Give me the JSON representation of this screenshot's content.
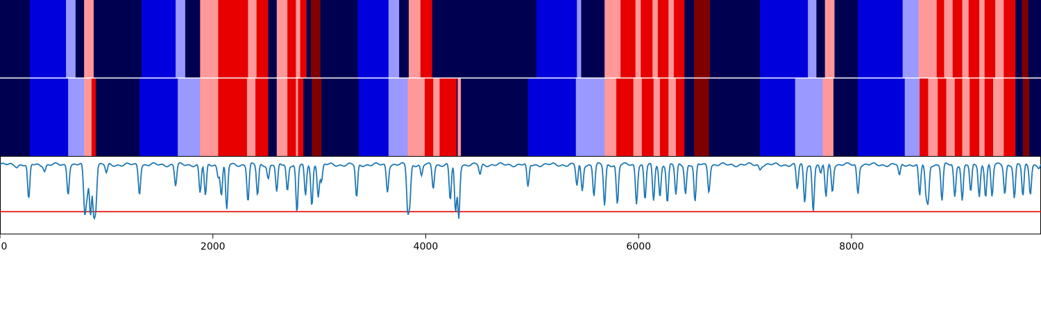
{
  "chart_data": [
    {
      "type": "heatmap",
      "palette": [
        "#000050",
        "#0000dc",
        "#9999ff",
        "#ff9999",
        "#e60000",
        "#800000"
      ],
      "xlim": [
        0,
        9780
      ],
      "segments": [
        [
          0,
          280,
          0
        ],
        [
          280,
          620,
          1
        ],
        [
          620,
          710,
          2
        ],
        [
          710,
          790,
          0
        ],
        [
          790,
          880,
          3
        ],
        [
          880,
          1330,
          0
        ],
        [
          1330,
          1650,
          1
        ],
        [
          1650,
          1740,
          2
        ],
        [
          1740,
          1880,
          0
        ],
        [
          1880,
          2050,
          3
        ],
        [
          2050,
          2330,
          4
        ],
        [
          2330,
          2410,
          3
        ],
        [
          2410,
          2520,
          4
        ],
        [
          2520,
          2600,
          0
        ],
        [
          2600,
          2700,
          3
        ],
        [
          2700,
          2780,
          4
        ],
        [
          2780,
          2820,
          3
        ],
        [
          2820,
          2880,
          4
        ],
        [
          2880,
          2920,
          0
        ],
        [
          2920,
          3010,
          5
        ],
        [
          3010,
          3360,
          0
        ],
        [
          3360,
          3650,
          1
        ],
        [
          3650,
          3750,
          2
        ],
        [
          3750,
          3840,
          0
        ],
        [
          3840,
          3950,
          3
        ],
        [
          3950,
          4060,
          4
        ],
        [
          4060,
          5040,
          0
        ],
        [
          5040,
          5420,
          1
        ],
        [
          5420,
          5460,
          2
        ],
        [
          5460,
          5680,
          0
        ],
        [
          5680,
          5830,
          3
        ],
        [
          5830,
          5970,
          4
        ],
        [
          5970,
          6020,
          3
        ],
        [
          6020,
          6130,
          4
        ],
        [
          6130,
          6180,
          3
        ],
        [
          6180,
          6280,
          4
        ],
        [
          6280,
          6330,
          3
        ],
        [
          6330,
          6430,
          4
        ],
        [
          6430,
          6520,
          0
        ],
        [
          6520,
          6670,
          5
        ],
        [
          6670,
          7140,
          0
        ],
        [
          7140,
          7590,
          1
        ],
        [
          7590,
          7670,
          2
        ],
        [
          7670,
          7750,
          0
        ],
        [
          7750,
          7840,
          3
        ],
        [
          7840,
          8060,
          0
        ],
        [
          8060,
          8480,
          1
        ],
        [
          8480,
          8630,
          2
        ],
        [
          8630,
          8800,
          3
        ],
        [
          8800,
          8870,
          4
        ],
        [
          8870,
          8950,
          3
        ],
        [
          8950,
          9040,
          4
        ],
        [
          9040,
          9100,
          3
        ],
        [
          9100,
          9200,
          4
        ],
        [
          9200,
          9250,
          3
        ],
        [
          9250,
          9350,
          4
        ],
        [
          9350,
          9430,
          3
        ],
        [
          9430,
          9540,
          4
        ],
        [
          9540,
          9600,
          0
        ],
        [
          9600,
          9660,
          5
        ],
        [
          9660,
          9780,
          0
        ]
      ]
    },
    {
      "type": "heatmap",
      "palette": [
        "#000050",
        "#0000dc",
        "#9999ff",
        "#ff9999",
        "#e60000",
        "#800000"
      ],
      "xlim": [
        0,
        9780
      ],
      "segments": [
        [
          0,
          280,
          0
        ],
        [
          280,
          640,
          1
        ],
        [
          640,
          790,
          2
        ],
        [
          790,
          860,
          3
        ],
        [
          860,
          900,
          4
        ],
        [
          900,
          1310,
          0
        ],
        [
          1310,
          1670,
          1
        ],
        [
          1670,
          1880,
          2
        ],
        [
          1880,
          2050,
          3
        ],
        [
          2050,
          2320,
          4
        ],
        [
          2320,
          2400,
          3
        ],
        [
          2400,
          2520,
          4
        ],
        [
          2520,
          2600,
          0
        ],
        [
          2600,
          2700,
          3
        ],
        [
          2700,
          2780,
          4
        ],
        [
          2780,
          2800,
          3
        ],
        [
          2800,
          2850,
          4
        ],
        [
          2850,
          2930,
          0
        ],
        [
          2930,
          3020,
          5
        ],
        [
          3020,
          3370,
          0
        ],
        [
          3370,
          3650,
          1
        ],
        [
          3650,
          3830,
          2
        ],
        [
          3830,
          3990,
          3
        ],
        [
          3990,
          4070,
          4
        ],
        [
          4070,
          4130,
          3
        ],
        [
          4130,
          4290,
          4
        ],
        [
          4290,
          4300,
          0
        ],
        [
          4300,
          4330,
          3
        ],
        [
          4330,
          4960,
          0
        ],
        [
          4960,
          5410,
          1
        ],
        [
          5410,
          5680,
          2
        ],
        [
          5680,
          5790,
          3
        ],
        [
          5790,
          5950,
          4
        ],
        [
          5950,
          6030,
          3
        ],
        [
          6030,
          6140,
          4
        ],
        [
          6140,
          6200,
          3
        ],
        [
          6200,
          6280,
          4
        ],
        [
          6280,
          6350,
          3
        ],
        [
          6350,
          6430,
          4
        ],
        [
          6430,
          6520,
          0
        ],
        [
          6520,
          6660,
          5
        ],
        [
          6660,
          7140,
          0
        ],
        [
          7140,
          7470,
          1
        ],
        [
          7470,
          7730,
          2
        ],
        [
          7730,
          7830,
          3
        ],
        [
          7830,
          8060,
          0
        ],
        [
          8060,
          8500,
          1
        ],
        [
          8500,
          8640,
          2
        ],
        [
          8640,
          8720,
          4
        ],
        [
          8720,
          8810,
          3
        ],
        [
          8810,
          8890,
          4
        ],
        [
          8890,
          8970,
          3
        ],
        [
          8970,
          9040,
          4
        ],
        [
          9040,
          9110,
          3
        ],
        [
          9110,
          9200,
          4
        ],
        [
          9200,
          9250,
          3
        ],
        [
          9250,
          9330,
          4
        ],
        [
          9330,
          9430,
          3
        ],
        [
          9430,
          9540,
          4
        ],
        [
          9540,
          9610,
          0
        ],
        [
          9610,
          9670,
          5
        ],
        [
          9670,
          9780,
          0
        ]
      ]
    },
    {
      "type": "line",
      "xlim": [
        0,
        9780
      ],
      "ylim": [
        -1.0,
        0.05
      ],
      "threshold": -0.7,
      "line_color": "#1f77b4",
      "threshold_color": "#e60000",
      "xticks": [
        "0",
        "2000",
        "4000",
        "6000",
        "8000"
      ],
      "xtick_values": [
        0,
        2000,
        4000,
        6000,
        8000
      ],
      "baseline": -0.06,
      "series": [
        {
          "dips": [
            [
              160,
              -0.08
            ],
            [
              270,
              -0.55
            ],
            [
              420,
              -0.14
            ],
            [
              640,
              -0.45
            ],
            [
              790,
              -0.32
            ],
            [
              800,
              -0.55
            ],
            [
              820,
              -0.42
            ],
            [
              850,
              -0.75
            ],
            [
              880,
              -0.68
            ],
            [
              900,
              -0.6
            ],
            [
              1000,
              -0.18
            ],
            [
              1310,
              -0.45
            ],
            [
              1650,
              -0.35
            ],
            [
              1880,
              -0.45
            ],
            [
              1930,
              -0.5
            ],
            [
              2050,
              -0.22
            ],
            [
              2080,
              -0.47
            ],
            [
              2130,
              -0.68
            ],
            [
              2330,
              -0.56
            ],
            [
              2420,
              -0.48
            ],
            [
              2520,
              -0.25
            ],
            [
              2600,
              -0.45
            ],
            [
              2700,
              -0.42
            ],
            [
              2790,
              -0.72
            ],
            [
              2870,
              -0.5
            ],
            [
              2930,
              -0.62
            ],
            [
              2990,
              -0.48
            ],
            [
              3020,
              -0.3
            ],
            [
              3350,
              -0.52
            ],
            [
              3640,
              -0.42
            ],
            [
              3830,
              -0.65
            ],
            [
              3850,
              -0.55
            ],
            [
              3960,
              -0.22
            ],
            [
              4070,
              -0.38
            ],
            [
              4230,
              -0.55
            ],
            [
              4280,
              -0.72
            ],
            [
              4310,
              -0.78
            ],
            [
              4510,
              -0.2
            ],
            [
              4960,
              -0.38
            ],
            [
              5420,
              -0.35
            ],
            [
              5470,
              -0.42
            ],
            [
              5580,
              -0.48
            ],
            [
              5680,
              -0.62
            ],
            [
              5800,
              -0.6
            ],
            [
              5980,
              -0.58
            ],
            [
              6060,
              -0.54
            ],
            [
              6140,
              -0.56
            ],
            [
              6200,
              -0.5
            ],
            [
              6270,
              -0.58
            ],
            [
              6350,
              -0.48
            ],
            [
              6440,
              -0.45
            ],
            [
              6530,
              -0.58
            ],
            [
              6660,
              -0.42
            ],
            [
              7140,
              -0.12
            ],
            [
              7490,
              -0.4
            ],
            [
              7560,
              -0.58
            ],
            [
              7640,
              -0.7
            ],
            [
              7710,
              -0.2
            ],
            [
              7760,
              -0.5
            ],
            [
              7820,
              -0.42
            ],
            [
              8060,
              -0.45
            ],
            [
              8450,
              -0.22
            ],
            [
              8640,
              -0.5
            ],
            [
              8700,
              -0.45
            ],
            [
              8720,
              -0.55
            ],
            [
              8850,
              -0.55
            ],
            [
              8970,
              -0.5
            ],
            [
              9040,
              -0.55
            ],
            [
              9120,
              -0.45
            ],
            [
              9200,
              -0.5
            ],
            [
              9260,
              -0.48
            ],
            [
              9320,
              -0.5
            ],
            [
              9440,
              -0.45
            ],
            [
              9530,
              -0.52
            ],
            [
              9610,
              -0.5
            ],
            [
              9680,
              -0.45
            ],
            [
              9760,
              -0.1
            ]
          ]
        }
      ]
    }
  ]
}
